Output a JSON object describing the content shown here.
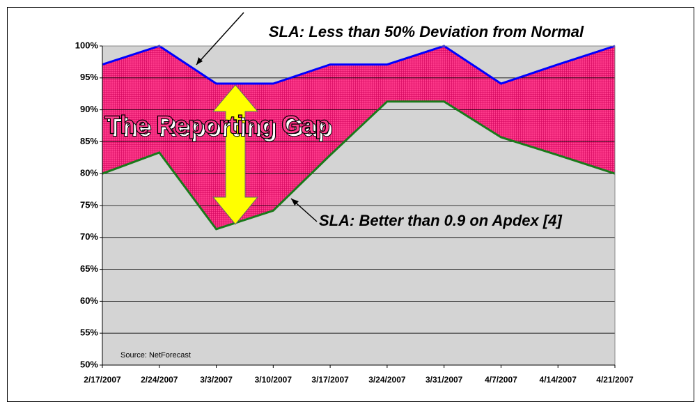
{
  "chart_data": {
    "type": "area",
    "categories": [
      "2/17/2007",
      "2/24/2007",
      "3/3/2007",
      "3/10/2007",
      "3/17/2007",
      "3/24/2007",
      "3/31/2007",
      "4/7/2007",
      "4/14/2007",
      "4/21/2007"
    ],
    "series": [
      {
        "name": "SLA: Less than 50% Deviation from Normal",
        "color": "#0000ff",
        "fill": "#ff3c8c",
        "values": [
          97.1,
          100,
          94.1,
          94.1,
          97.1,
          97.1,
          100,
          94.1,
          97.1,
          100
        ]
      },
      {
        "name": "SLA: Better than 0.9 on Apdex [4]",
        "color": "#1a7a1a",
        "fill": "#d4d4d4",
        "values": [
          80,
          83.3,
          71.3,
          74.2,
          82.9,
          91.3,
          91.3,
          85.7,
          82.9,
          80
        ]
      }
    ],
    "annotations": [
      "The Reporting Gap",
      "Source: NetForecast"
    ],
    "ylim": [
      50,
      100
    ],
    "yticks": [
      {
        "value": 50,
        "label": "50%"
      },
      {
        "value": 55,
        "label": "55%"
      },
      {
        "value": 60,
        "label": "60%"
      },
      {
        "value": 65,
        "label": "65%"
      },
      {
        "value": 70,
        "label": "70%"
      },
      {
        "value": 75,
        "label": "75%"
      },
      {
        "value": 80,
        "label": "80%"
      },
      {
        "value": 85,
        "label": "85%"
      },
      {
        "value": 90,
        "label": "90%"
      },
      {
        "value": 95,
        "label": "95%"
      },
      {
        "value": 100,
        "label": "100%"
      }
    ],
    "grid": true
  }
}
